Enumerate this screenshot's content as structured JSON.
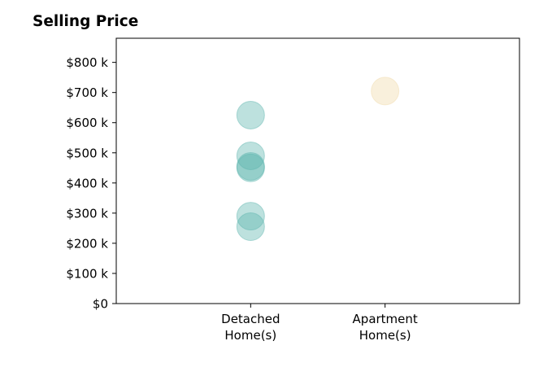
{
  "chart_data": {
    "type": "scatter",
    "title": "Selling Price",
    "xlabel": "",
    "ylabel": "",
    "categories": [
      "Detached Home(s)",
      "Apartment Home(s)"
    ],
    "category_labels": [
      [
        "Detached",
        "Home(s)"
      ],
      [
        "Apartment",
        "Home(s)"
      ]
    ],
    "yticks": [
      0,
      100,
      200,
      300,
      400,
      500,
      600,
      700,
      800
    ],
    "ytick_labels": [
      "$0",
      "$100 k",
      "$200 k",
      "$300 k",
      "$400 k",
      "$500 k",
      "$600 k",
      "$700 k",
      "$800 k"
    ],
    "ylim": [
      0,
      880
    ],
    "xlim": [
      -1,
      2
    ],
    "series": [
      {
        "category": "Detached Home(s)",
        "color": "#5ab4ac",
        "values": [
          625,
          490,
          455,
          450,
          290,
          255
        ]
      },
      {
        "category": "Apartment Home(s)",
        "color": "#f0d9a8",
        "values": [
          705
        ]
      }
    ],
    "grid": false,
    "legend": "none"
  }
}
